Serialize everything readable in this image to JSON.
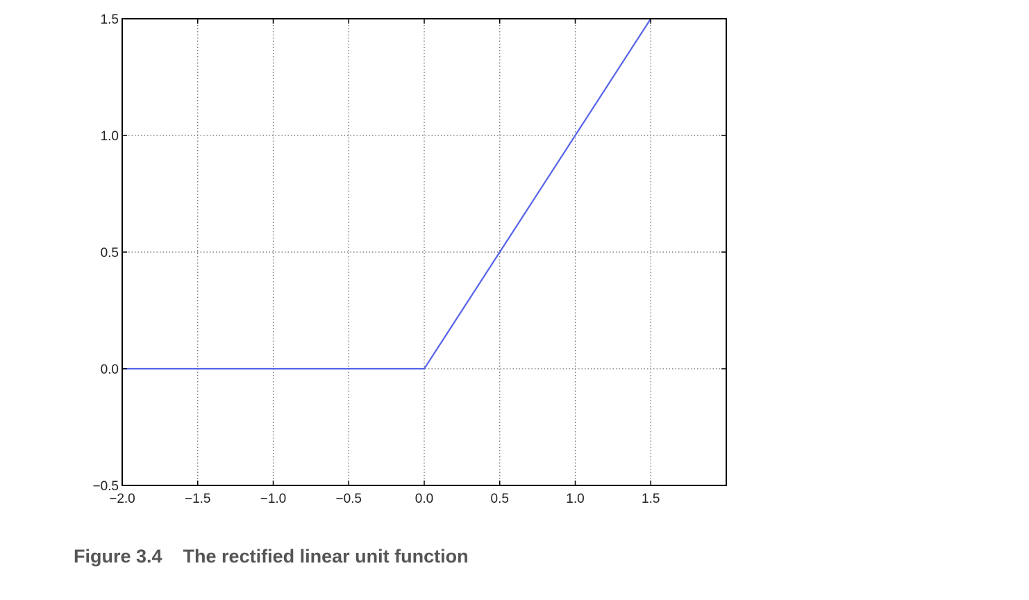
{
  "chart_data": {
    "type": "line",
    "title": "",
    "xlabel": "",
    "ylabel": "",
    "xlim": [
      -2.0,
      2.0
    ],
    "ylim": [
      -0.5,
      1.5
    ],
    "xticks": [
      -2.0,
      -1.5,
      -1.0,
      -0.5,
      0.0,
      0.5,
      1.0,
      1.5
    ],
    "xtick_labels": [
      "−2.0",
      "−1.5",
      "−1.0",
      "−0.5",
      "0.0",
      "0.5",
      "1.0",
      "1.5"
    ],
    "yticks": [
      -0.5,
      0.0,
      0.5,
      1.0,
      1.5
    ],
    "ytick_labels": [
      "−0.5",
      "0.0",
      "0.5",
      "1.0",
      "1.5"
    ],
    "grid": true,
    "grid_style": "dotted",
    "series": [
      {
        "color": "#5563e8",
        "x": [
          -2.0,
          0.0,
          1.5
        ],
        "y": [
          0.0,
          0.0,
          1.5
        ]
      }
    ]
  },
  "caption": {
    "figure_number": "Figure 3.4",
    "text": "The rectified linear unit function"
  }
}
